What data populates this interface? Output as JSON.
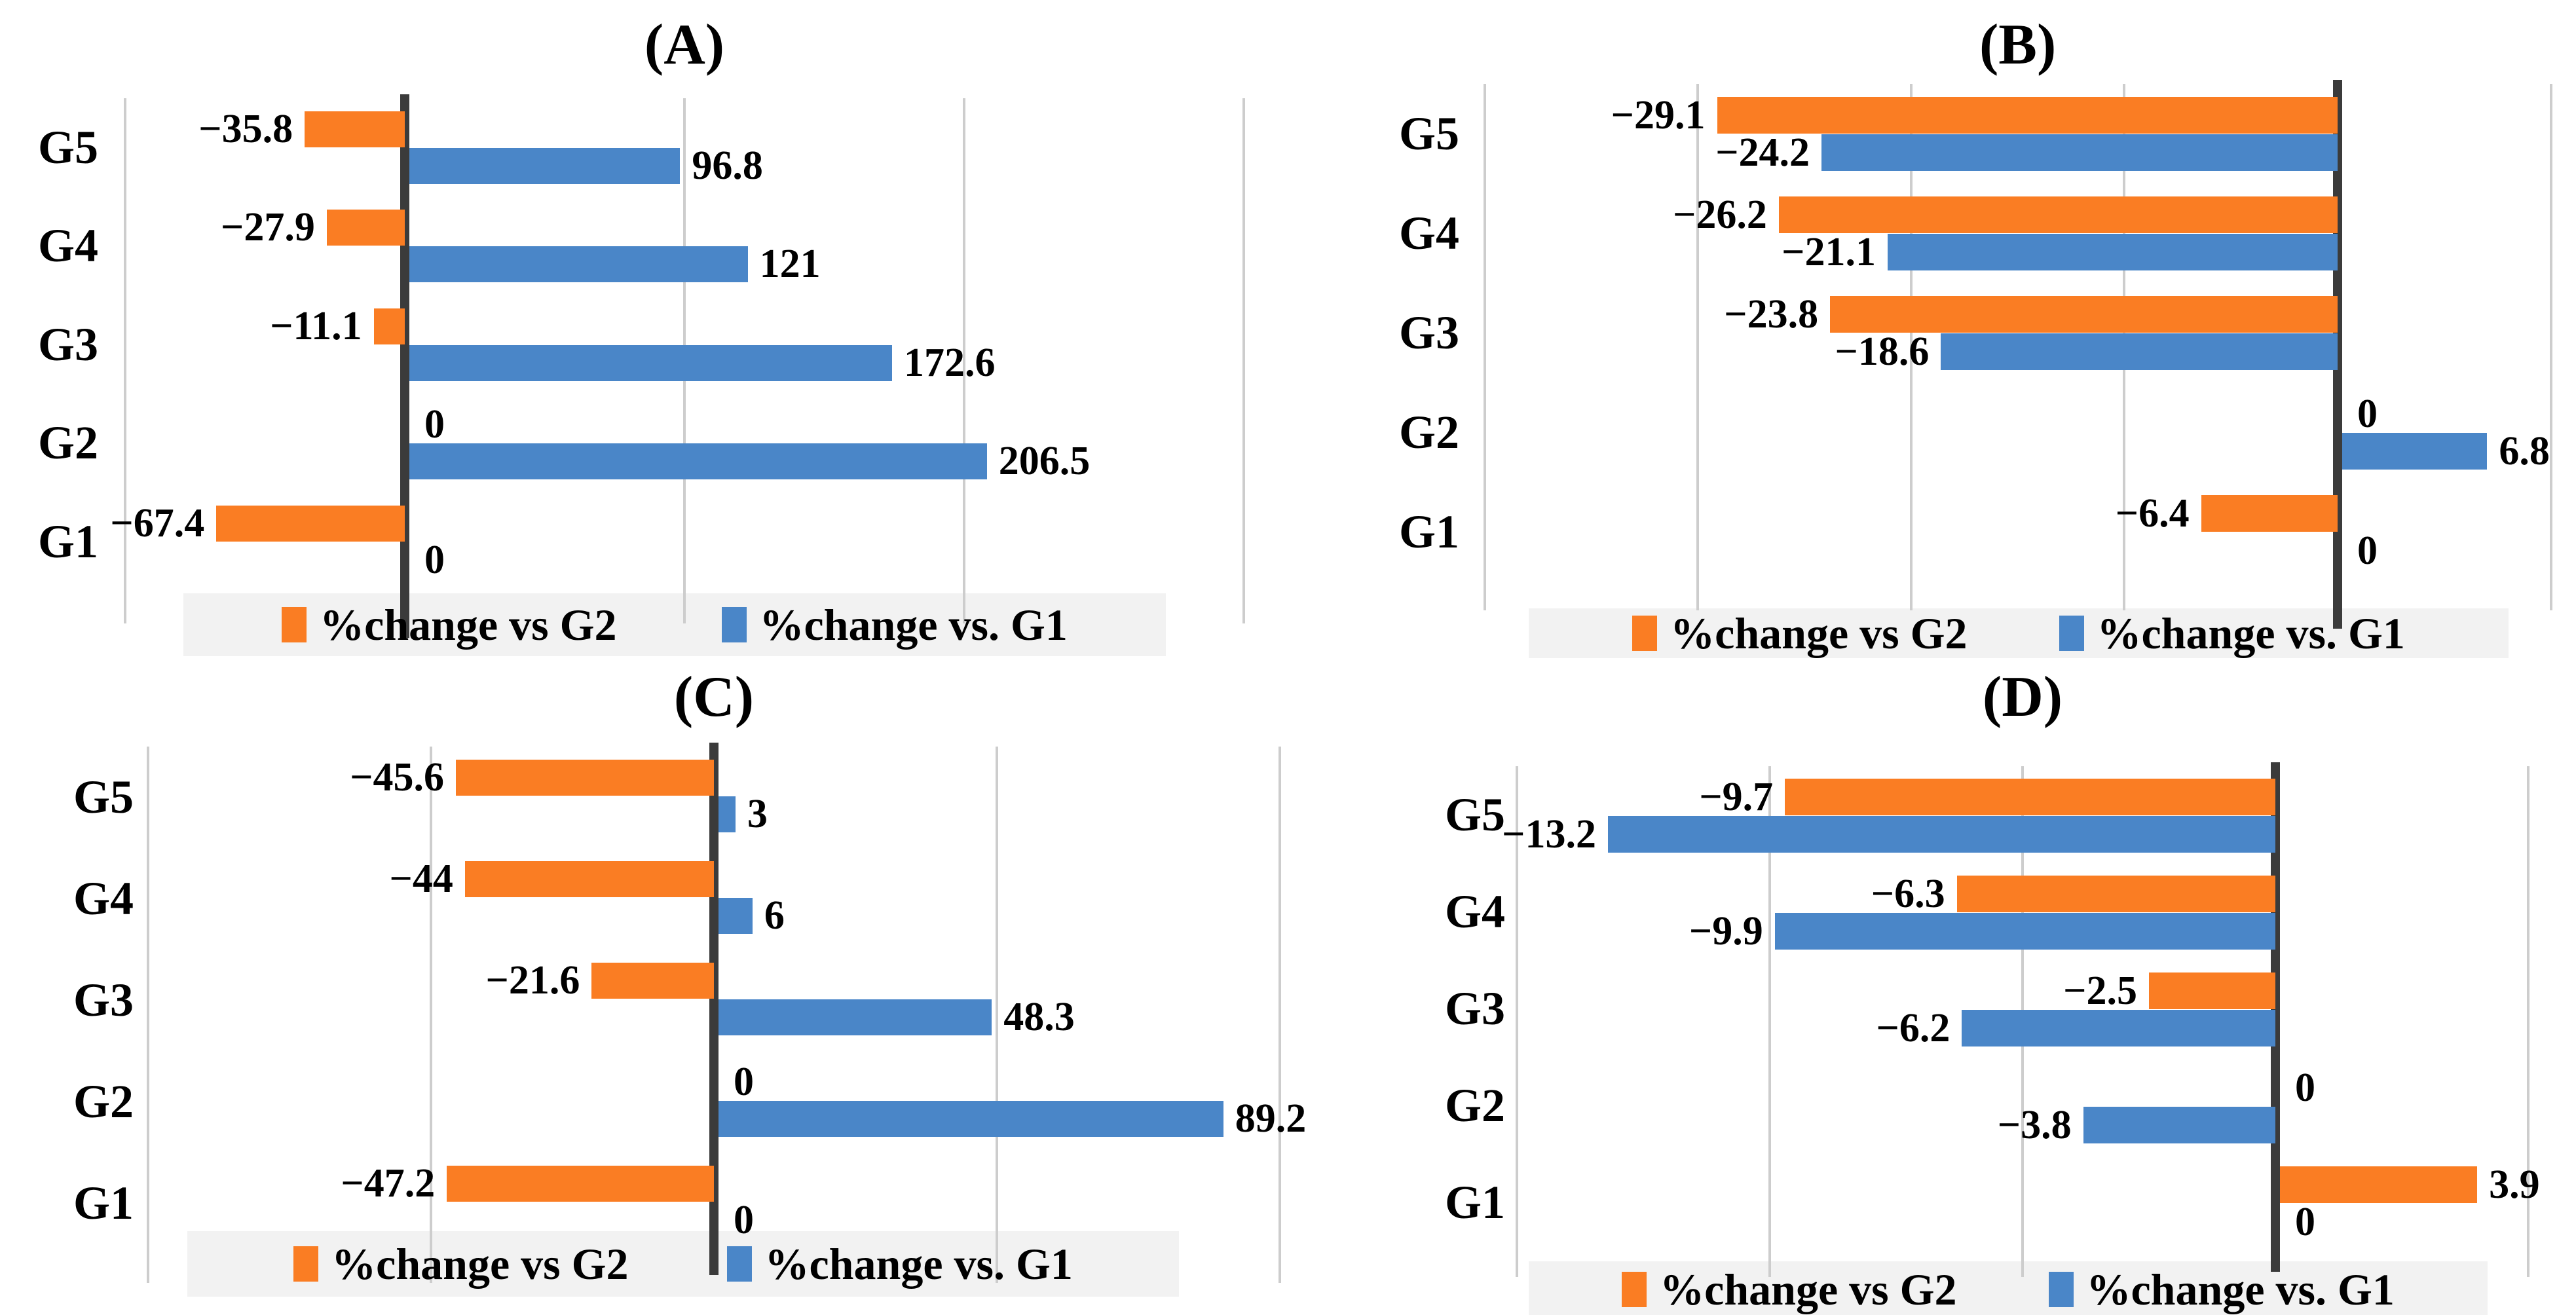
{
  "figure": {
    "background": "#ffffff",
    "series_colors": {
      "vs_g2": "#FA7D23",
      "vs_g1": "#4A86C8"
    },
    "zero_axis_color": "#3B3B3B",
    "grid_color": "#CDCDCD",
    "legend_bg": "#F2F2F2",
    "text_color": "#000000",
    "legend": [
      "%change vs G2",
      "%change vs. G1"
    ]
  },
  "chart_data": [
    {
      "type": "bar",
      "orientation": "horizontal",
      "panel": "(A)",
      "categories": [
        "G5",
        "G4",
        "G3",
        "G2",
        "G1"
      ],
      "series": [
        {
          "name": "%change vs G2",
          "color": "#FA7D23",
          "values": [
            -35.8,
            -27.9,
            -11.1,
            0,
            -67.4
          ]
        },
        {
          "name": "%change vs. G1",
          "color": "#4A86C8",
          "values": [
            96.8,
            121,
            172.6,
            206.5,
            0
          ]
        }
      ],
      "xlim": [
        -100,
        300
      ],
      "grid_step": 100,
      "grid": true,
      "legend_position": "bottom"
    },
    {
      "type": "bar",
      "orientation": "horizontal",
      "panel": "(B)",
      "categories": [
        "G5",
        "G4",
        "G3",
        "G2",
        "G1"
      ],
      "series": [
        {
          "name": "%change vs G2",
          "color": "#FA7D23",
          "values": [
            -29.1,
            -26.2,
            -23.8,
            0,
            -6.4
          ]
        },
        {
          "name": "%change vs. G1",
          "color": "#4A86C8",
          "values": [
            -24.2,
            -21.1,
            -18.6,
            6.8,
            0
          ]
        }
      ],
      "xlim": [
        -40,
        10
      ],
      "grid_step": 10,
      "grid": true,
      "legend_position": "bottom"
    },
    {
      "type": "bar",
      "orientation": "horizontal",
      "panel": "(C)",
      "categories": [
        "G5",
        "G4",
        "G3",
        "G2",
        "G1"
      ],
      "series": [
        {
          "name": "%change vs G2",
          "color": "#FA7D23",
          "values": [
            -45.6,
            -44,
            -21.6,
            0,
            -47.2
          ]
        },
        {
          "name": "%change vs. G1",
          "color": "#4A86C8",
          "values": [
            3,
            6,
            48.3,
            89.2,
            0
          ]
        }
      ],
      "xlim": [
        -100,
        100
      ],
      "grid_step": 50,
      "grid": true,
      "legend_position": "bottom"
    },
    {
      "type": "bar",
      "orientation": "horizontal",
      "panel": "(D)",
      "categories": [
        "G5",
        "G4",
        "G3",
        "G2",
        "G1"
      ],
      "series": [
        {
          "name": "%change vs G2",
          "color": "#FA7D23",
          "values": [
            -9.7,
            -6.3,
            -2.5,
            0,
            3.9
          ]
        },
        {
          "name": "%change vs. G1",
          "color": "#4A86C8",
          "values": [
            -13.2,
            -9.9,
            -6.2,
            -3.8,
            0
          ]
        }
      ],
      "xlim": [
        -15,
        5
      ],
      "grid_step": 5,
      "grid": true,
      "legend_position": "bottom"
    }
  ]
}
